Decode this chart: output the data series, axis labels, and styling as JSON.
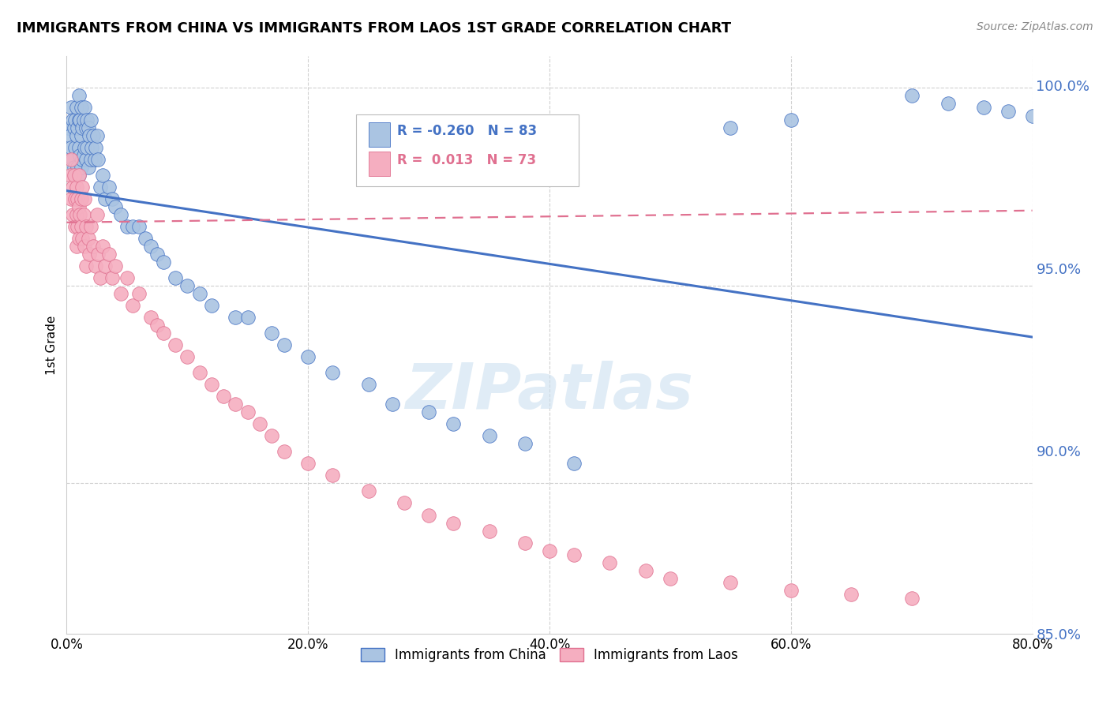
{
  "title": "IMMIGRANTS FROM CHINA VS IMMIGRANTS FROM LAOS 1ST GRADE CORRELATION CHART",
  "source": "Source: ZipAtlas.com",
  "ylabel": "1st Grade",
  "y_tick_values": [
    0.85,
    0.9,
    0.95,
    1.0
  ],
  "x_range": [
    0.0,
    0.8
  ],
  "y_range": [
    0.862,
    1.008
  ],
  "legend1_label": "Immigrants from China",
  "legend2_label": "Immigrants from Laos",
  "R_china": "-0.260",
  "N_china": "83",
  "R_laos": "0.013",
  "N_laos": "73",
  "china_color": "#aac4e2",
  "laos_color": "#f5aec0",
  "china_line_color": "#4472c4",
  "laos_line_color": "#e07090",
  "watermark": "ZIPatlas",
  "background_color": "#ffffff",
  "china_trend_x0": 0.0,
  "china_trend_y0": 0.974,
  "china_trend_x1": 0.8,
  "china_trend_y1": 0.937,
  "laos_trend_x0": 0.0,
  "laos_trend_y0": 0.966,
  "laos_trend_x1": 0.8,
  "laos_trend_y1": 0.969,
  "china_scatter_x": [
    0.002,
    0.003,
    0.004,
    0.004,
    0.005,
    0.005,
    0.006,
    0.006,
    0.007,
    0.007,
    0.008,
    0.008,
    0.008,
    0.009,
    0.009,
    0.01,
    0.01,
    0.01,
    0.01,
    0.011,
    0.011,
    0.012,
    0.012,
    0.012,
    0.013,
    0.013,
    0.014,
    0.014,
    0.015,
    0.015,
    0.016,
    0.016,
    0.017,
    0.017,
    0.018,
    0.018,
    0.019,
    0.02,
    0.02,
    0.021,
    0.022,
    0.023,
    0.024,
    0.025,
    0.026,
    0.028,
    0.03,
    0.032,
    0.035,
    0.038,
    0.04,
    0.045,
    0.05,
    0.055,
    0.06,
    0.065,
    0.07,
    0.075,
    0.08,
    0.09,
    0.1,
    0.11,
    0.12,
    0.14,
    0.15,
    0.17,
    0.18,
    0.2,
    0.22,
    0.25,
    0.27,
    0.3,
    0.32,
    0.35,
    0.38,
    0.42,
    0.55,
    0.6,
    0.7,
    0.73,
    0.76,
    0.78,
    0.8
  ],
  "china_scatter_y": [
    0.99,
    0.988,
    0.995,
    0.985,
    0.992,
    0.982,
    0.99,
    0.98,
    0.992,
    0.985,
    0.995,
    0.988,
    0.978,
    0.99,
    0.98,
    0.998,
    0.992,
    0.985,
    0.978,
    0.992,
    0.983,
    0.995,
    0.988,
    0.98,
    0.99,
    0.982,
    0.992,
    0.983,
    0.995,
    0.985,
    0.99,
    0.982,
    0.992,
    0.985,
    0.99,
    0.98,
    0.988,
    0.992,
    0.982,
    0.985,
    0.988,
    0.982,
    0.985,
    0.988,
    0.982,
    0.975,
    0.978,
    0.972,
    0.975,
    0.972,
    0.97,
    0.968,
    0.965,
    0.965,
    0.965,
    0.962,
    0.96,
    0.958,
    0.956,
    0.952,
    0.95,
    0.948,
    0.945,
    0.942,
    0.942,
    0.938,
    0.935,
    0.932,
    0.928,
    0.925,
    0.92,
    0.918,
    0.915,
    0.912,
    0.91,
    0.905,
    0.99,
    0.992,
    0.998,
    0.996,
    0.995,
    0.994,
    0.993
  ],
  "laos_scatter_x": [
    0.003,
    0.004,
    0.004,
    0.005,
    0.005,
    0.006,
    0.007,
    0.007,
    0.008,
    0.008,
    0.008,
    0.009,
    0.009,
    0.01,
    0.01,
    0.01,
    0.011,
    0.012,
    0.012,
    0.013,
    0.013,
    0.014,
    0.015,
    0.015,
    0.016,
    0.016,
    0.018,
    0.019,
    0.02,
    0.022,
    0.024,
    0.025,
    0.026,
    0.028,
    0.03,
    0.032,
    0.035,
    0.038,
    0.04,
    0.045,
    0.05,
    0.055,
    0.06,
    0.07,
    0.075,
    0.08,
    0.09,
    0.1,
    0.11,
    0.12,
    0.13,
    0.14,
    0.15,
    0.16,
    0.17,
    0.18,
    0.2,
    0.22,
    0.25,
    0.28,
    0.3,
    0.32,
    0.35,
    0.38,
    0.4,
    0.42,
    0.45,
    0.48,
    0.5,
    0.55,
    0.6,
    0.65,
    0.7
  ],
  "laos_scatter_y": [
    0.978,
    0.972,
    0.982,
    0.975,
    0.968,
    0.978,
    0.972,
    0.965,
    0.975,
    0.968,
    0.96,
    0.972,
    0.965,
    0.978,
    0.97,
    0.962,
    0.968,
    0.972,
    0.965,
    0.975,
    0.962,
    0.968,
    0.972,
    0.96,
    0.965,
    0.955,
    0.962,
    0.958,
    0.965,
    0.96,
    0.955,
    0.968,
    0.958,
    0.952,
    0.96,
    0.955,
    0.958,
    0.952,
    0.955,
    0.948,
    0.952,
    0.945,
    0.948,
    0.942,
    0.94,
    0.938,
    0.935,
    0.932,
    0.928,
    0.925,
    0.922,
    0.92,
    0.918,
    0.915,
    0.912,
    0.908,
    0.905,
    0.902,
    0.898,
    0.895,
    0.892,
    0.89,
    0.888,
    0.885,
    0.883,
    0.882,
    0.88,
    0.878,
    0.876,
    0.875,
    0.873,
    0.872,
    0.871
  ]
}
